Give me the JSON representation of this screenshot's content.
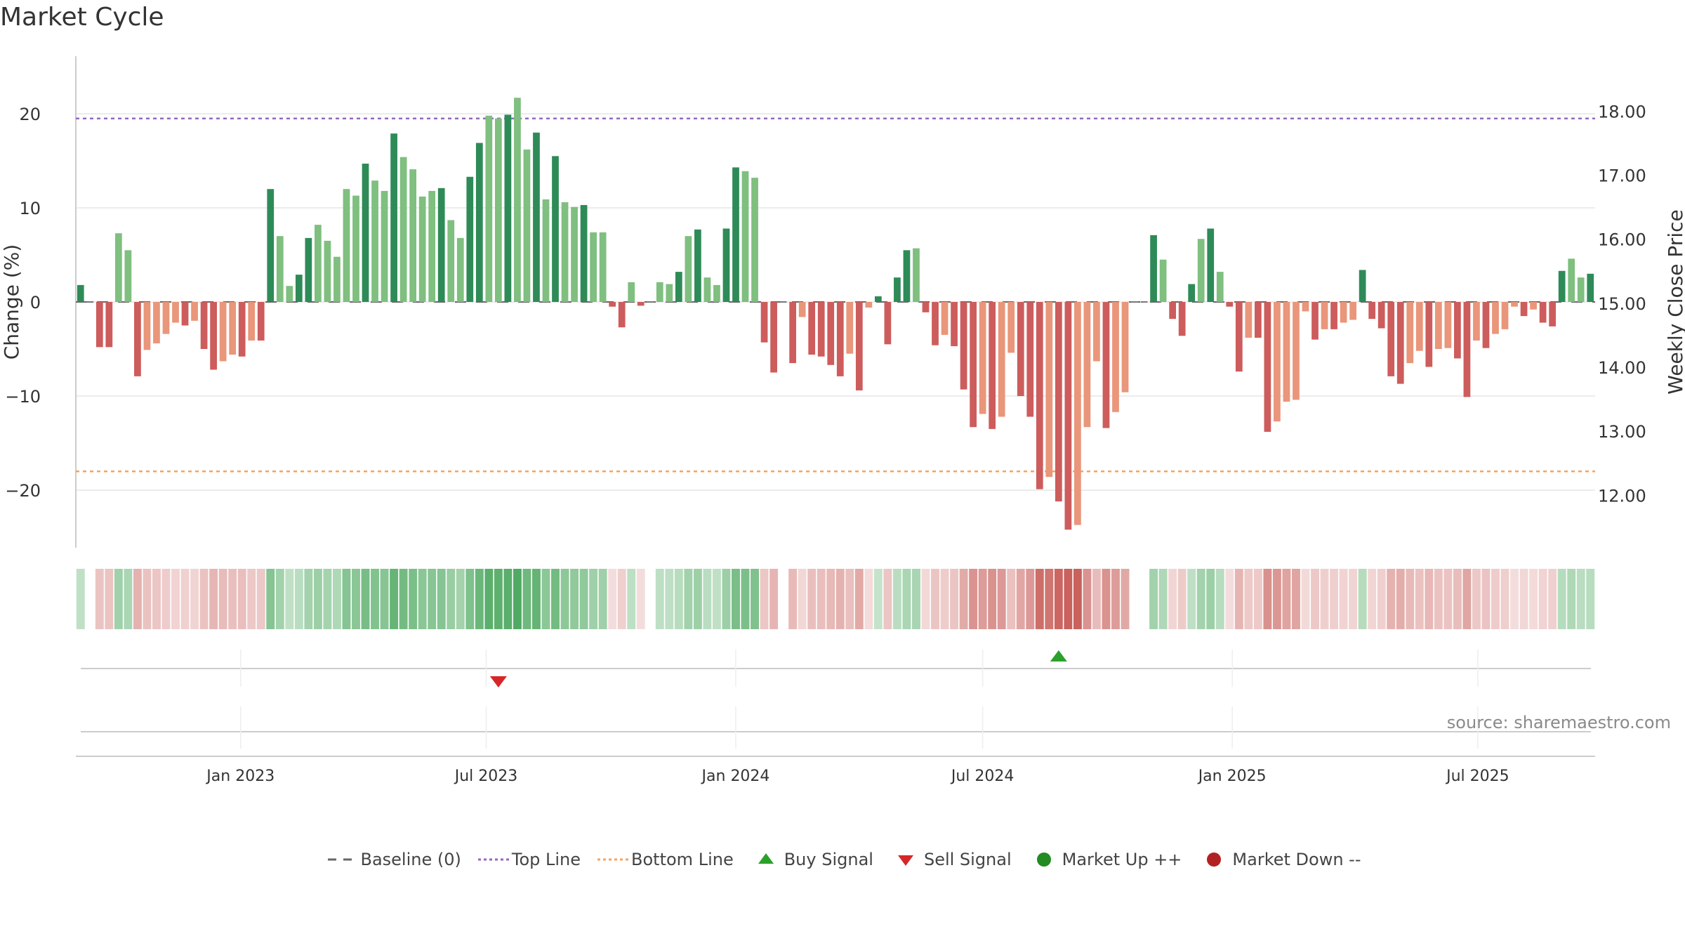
{
  "title": "Market Cycle",
  "source": "source: sharemaestro.com",
  "legend": {
    "baseline": "Baseline (0)",
    "top_line": "Top Line",
    "bottom_line": "Bottom Line",
    "buy_signal": "Buy Signal",
    "sell_signal": "Sell Signal",
    "market_up": "Market Up ++",
    "market_down": "Market Down --"
  },
  "colors": {
    "up_strong": "#2e8b57",
    "up_light": "#7fbf7f",
    "down_strong": "#cd5c5c",
    "down_light": "#e9967a",
    "top_line": "#9467bd",
    "bottom_line": "#f4a460",
    "buy": "#2ca02c",
    "sell": "#d62728",
    "market_up": "#228b22",
    "market_down": "#b22222"
  },
  "chart_data": {
    "type": "bar",
    "ylabel": "Change (%)",
    "y2label": "Weekly Close Price",
    "ylim": [
      -26,
      26
    ],
    "y2lim": [
      11.18,
      18.86
    ],
    "yticks": [
      "20",
      "10",
      "0",
      "−10",
      "−20"
    ],
    "y2ticks": [
      "18.00",
      "17.00",
      "16.00",
      "15.00",
      "14.00",
      "13.00",
      "12.00"
    ],
    "top_line": 19.5,
    "bottom_line": -18,
    "xticks": [
      "Jan 2023",
      "Jul 2023",
      "Jan 2024",
      "Jul 2024",
      "Jan 2025",
      "Jul 2025"
    ],
    "grid": true,
    "weeks_start": "2022-09-05",
    "values": [
      1.8,
      0,
      -4.8,
      -4.8,
      7.3,
      5.5,
      -7.9,
      -5.1,
      -4.4,
      -3.4,
      -2.2,
      -2.5,
      -2,
      -5,
      -7.2,
      -6.3,
      -5.6,
      -5.8,
      -4.1,
      -4.1,
      12,
      7,
      1.7,
      2.9,
      6.8,
      8.2,
      6.5,
      4.8,
      12,
      11.3,
      14.7,
      12.9,
      11.8,
      17.9,
      15.4,
      14.1,
      11.2,
      11.8,
      12.1,
      8.7,
      6.8,
      13.3,
      16.9,
      19.8,
      19.5,
      19.9,
      21.7,
      16.2,
      18,
      10.9,
      15.5,
      10.6,
      10.1,
      10.3,
      7.4,
      7.4,
      -0.5,
      -2.7,
      2.1,
      -0.4,
      0,
      2.1,
      1.9,
      3.2,
      7,
      7.7,
      2.6,
      1.8,
      7.8,
      14.3,
      13.9,
      13.2,
      -4.3,
      -7.5,
      0,
      -6.5,
      -1.6,
      -5.6,
      -5.8,
      -6.7,
      -7.9,
      -5.5,
      -9.4,
      -0.6,
      0.6,
      -4.5,
      2.6,
      5.5,
      5.7,
      -1.1,
      -4.6,
      -3.5,
      -4.7,
      -9.3,
      -13.3,
      -11.9,
      -13.5,
      -12.2,
      -5.4,
      -10,
      -12.2,
      -19.9,
      -18.6,
      -21.2,
      -24.2,
      -23.7,
      -13.3,
      -6.3,
      -13.4,
      -11.7,
      -9.6,
      0,
      0,
      7.1,
      4.5,
      -1.8,
      -3.6,
      1.9,
      6.7,
      7.8,
      3.2,
      -0.5,
      -7.4,
      -3.8,
      -3.8,
      -13.8,
      -12.7,
      -10.6,
      -10.4,
      -1,
      -4,
      -2.9,
      -2.9,
      -2.2,
      -1.9,
      3.4,
      -1.8,
      -2.8,
      -7.9,
      -8.7,
      -6.5,
      -5.2,
      -6.9,
      -5,
      -4.9,
      -6,
      -10.1,
      -4.1,
      -4.9,
      -3.4,
      -2.9,
      -0.5,
      -1.5,
      -0.8,
      -2.2,
      -2.6,
      3.3,
      4.6,
      2.6,
      3
    ],
    "buy_signals": [
      "2024-08-26"
    ],
    "sell_signals": [
      "2023-07-10"
    ]
  }
}
